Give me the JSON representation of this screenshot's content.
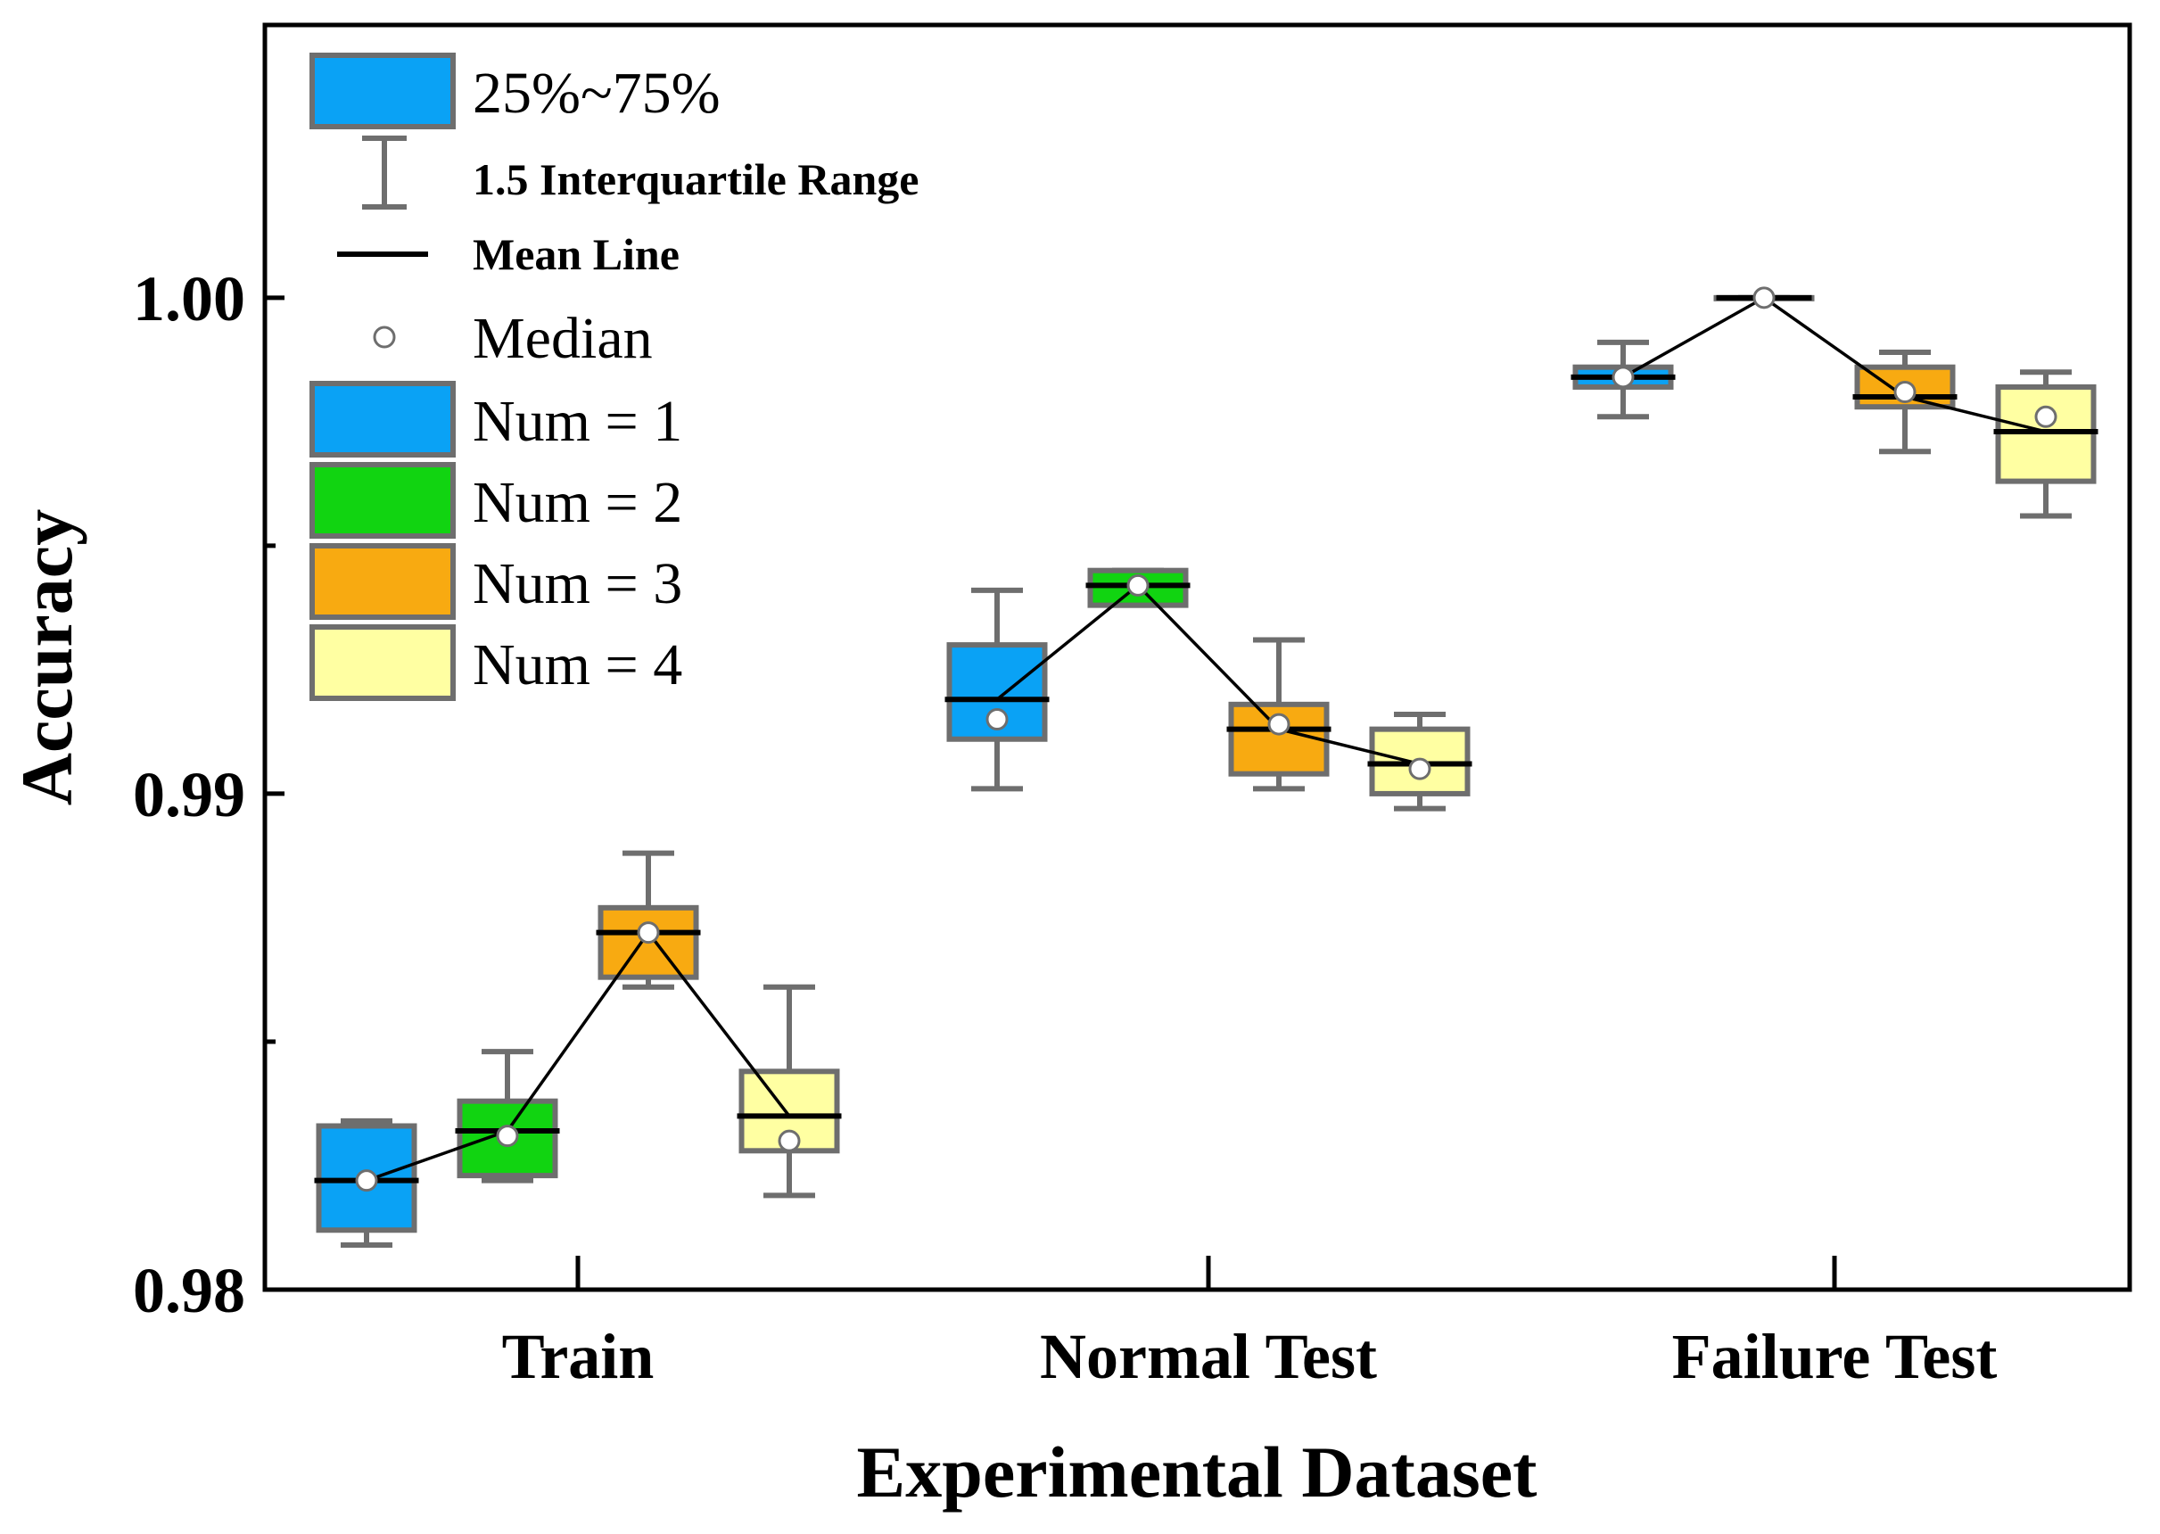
{
  "chart_data": {
    "type": "box",
    "xlabel": "Experimental Dataset",
    "ylabel": "Accuracy",
    "ylim": [
      0.98,
      1.0055
    ],
    "yticks": [
      0.98,
      0.99,
      1.0
    ],
    "ytick_labels": [
      "0.98",
      "0.99",
      "1.00"
    ],
    "categories": [
      "Train",
      "Normal Test",
      "Failure Test"
    ],
    "series": [
      {
        "name": "Num = 1",
        "color": "#0aa2f5",
        "boxes": [
          {
            "whisker_low": 0.9809,
            "q1": 0.9812,
            "median": 0.9822,
            "mean": 0.9822,
            "q3": 0.9833,
            "whisker_high": 0.9834
          },
          {
            "whisker_low": 0.9901,
            "q1": 0.9911,
            "median": 0.9915,
            "mean": 0.9919,
            "q3": 0.993,
            "whisker_high": 0.9941
          },
          {
            "whisker_low": 0.9976,
            "q1": 0.9982,
            "median": 0.9984,
            "mean": 0.9984,
            "q3": 0.9986,
            "whisker_high": 0.9991
          }
        ]
      },
      {
        "name": "Num = 2",
        "color": "#11d411",
        "boxes": [
          {
            "whisker_low": 0.9822,
            "q1": 0.9823,
            "median": 0.9831,
            "mean": 0.9832,
            "q3": 0.9838,
            "whisker_high": 0.9848
          },
          {
            "whisker_low": 0.9938,
            "q1": 0.9938,
            "median": 0.9942,
            "mean": 0.9942,
            "q3": 0.9945,
            "whisker_high": 0.9945
          },
          {
            "whisker_low": 1.0,
            "q1": 1.0,
            "median": 1.0,
            "mean": 1.0,
            "q3": 1.0,
            "whisker_high": 1.0
          }
        ]
      },
      {
        "name": "Num = 3",
        "color": "#f8aa11",
        "boxes": [
          {
            "whisker_low": 0.9861,
            "q1": 0.9863,
            "median": 0.9872,
            "mean": 0.9872,
            "q3": 0.9877,
            "whisker_high": 0.9888
          },
          {
            "whisker_low": 0.9901,
            "q1": 0.9904,
            "median": 0.9914,
            "mean": 0.9913,
            "q3": 0.9918,
            "whisker_high": 0.9931
          },
          {
            "whisker_low": 0.9969,
            "q1": 0.9978,
            "median": 0.9981,
            "mean": 0.998,
            "q3": 0.9986,
            "whisker_high": 0.9989
          }
        ]
      },
      {
        "name": "Num = 4",
        "color": "#ffffa2",
        "boxes": [
          {
            "whisker_low": 0.9819,
            "q1": 0.9828,
            "median": 0.983,
            "mean": 0.9835,
            "q3": 0.9844,
            "whisker_high": 0.9861
          },
          {
            "whisker_low": 0.9897,
            "q1": 0.99,
            "median": 0.9905,
            "mean": 0.9906,
            "q3": 0.9913,
            "whisker_high": 0.9916
          },
          {
            "whisker_low": 0.9956,
            "q1": 0.9963,
            "median": 0.9976,
            "mean": 0.9973,
            "q3": 0.9982,
            "whisker_high": 0.9985
          }
        ]
      }
    ],
    "legend": {
      "position": "top-left",
      "iqr_label": "25%~75%",
      "range_label": "1.5 Interquartile Range",
      "mean_label": "Mean Line",
      "median_label": "Median"
    },
    "colors": {
      "box_stroke": "#6e6e6e",
      "mean_line": "#000000",
      "connector": "#000000",
      "axis": "#000000"
    }
  }
}
